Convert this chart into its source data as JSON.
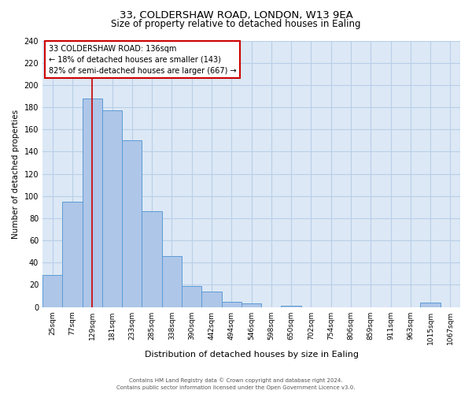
{
  "title1": "33, COLDERSHAW ROAD, LONDON, W13 9EA",
  "title2": "Size of property relative to detached houses in Ealing",
  "xlabel": "Distribution of detached houses by size in Ealing",
  "ylabel": "Number of detached properties",
  "bar_labels": [
    "25sqm",
    "77sqm",
    "129sqm",
    "181sqm",
    "233sqm",
    "285sqm",
    "338sqm",
    "390sqm",
    "442sqm",
    "494sqm",
    "546sqm",
    "598sqm",
    "650sqm",
    "702sqm",
    "754sqm",
    "806sqm",
    "859sqm",
    "911sqm",
    "963sqm",
    "1015sqm",
    "1067sqm"
  ],
  "bar_values": [
    29,
    95,
    188,
    177,
    150,
    86,
    46,
    19,
    14,
    5,
    3,
    0,
    1,
    0,
    0,
    0,
    0,
    0,
    0,
    4,
    0
  ],
  "bar_color": "#aec6e8",
  "bar_edge_color": "#5b9bd5",
  "property_line_x": 2,
  "property_line_color": "#cc0000",
  "ylim": [
    0,
    240
  ],
  "yticks": [
    0,
    20,
    40,
    60,
    80,
    100,
    120,
    140,
    160,
    180,
    200,
    220,
    240
  ],
  "annotation_box_text": [
    "33 COLDERSHAW ROAD: 136sqm",
    "← 18% of detached houses are smaller (143)",
    "82% of semi-detached houses are larger (667) →"
  ],
  "annotation_box_color": "#cc0000",
  "footer1": "Contains HM Land Registry data © Crown copyright and database right 2024.",
  "footer2": "Contains public sector information licensed under the Open Government Licence v3.0.",
  "bg_color": "#dce8f5",
  "grid_color": "#b8cfe8"
}
